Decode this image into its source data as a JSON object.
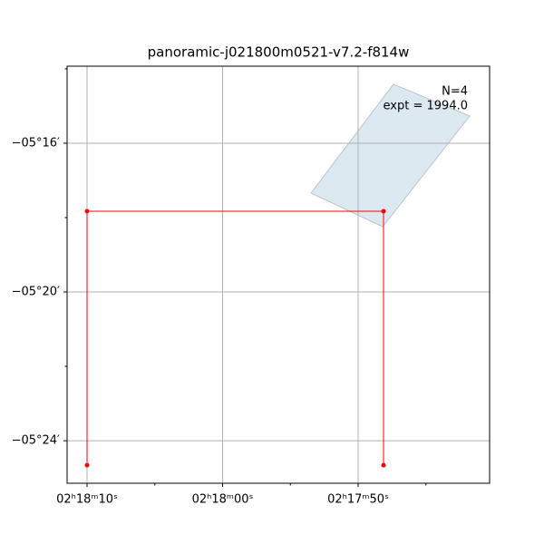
{
  "chart_data": {
    "type": "sky",
    "title": "panoramic-j021800m0521-v7.2-f814w",
    "annotations": [
      "N=4",
      "expt = 1994.0"
    ],
    "xlim": [
      34.5478,
      34.41792
    ],
    "ylim": [
      -5.41906,
      -5.23215
    ],
    "xticks": [
      {
        "value": 34.541667,
        "label": "02ʰ18ᵐ10ˢ"
      },
      {
        "value": 34.5,
        "label": "02ʰ18ᵐ00ˢ"
      },
      {
        "value": 34.458333,
        "label": "02ʰ17ᵐ50ˢ"
      }
    ],
    "xminor": [
      34.520833,
      34.479167,
      34.4375
    ],
    "yticks": [
      {
        "value": -5.266667,
        "label": "−05°16′"
      },
      {
        "value": -5.333333,
        "label": "−05°20′"
      },
      {
        "value": -5.4,
        "label": "−05°24′"
      }
    ],
    "yminor": [
      -5.233333,
      -5.3,
      -5.366667
    ],
    "grid": true,
    "footprint": {
      "color": "#dde9f1",
      "x": [
        34.44746,
        34.42404,
        34.45079,
        34.47283
      ],
      "y": [
        -5.24024,
        -5.25447,
        -5.30407,
        -5.28902
      ]
    },
    "series": [
      {
        "color": "#ff0000",
        "x": [
          34.541667,
          34.541667,
          34.45053,
          34.45053
        ],
        "y": [
          -5.41098,
          -5.29715,
          -5.29715,
          -5.41098
        ]
      }
    ]
  }
}
